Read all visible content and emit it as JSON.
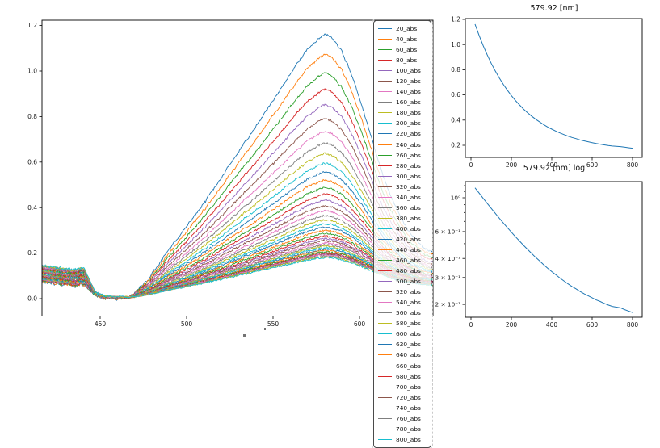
{
  "figure": {
    "background": "#ffffff"
  },
  "palette": [
    "#1f77b4",
    "#ff7f0e",
    "#2ca02c",
    "#d62728",
    "#9467bd",
    "#8c564b",
    "#e377c2",
    "#7f7f7f",
    "#bcbd22",
    "#17becf"
  ],
  "chart_data": [
    {
      "id": "spectra",
      "type": "line",
      "title": "",
      "xlabel": "",
      "ylabel": "",
      "peak_wavelength_nm": 579.92,
      "xlim": [
        416.4,
        642.6
      ],
      "ylim": [
        -0.076,
        1.227
      ],
      "xticks": [
        450,
        500,
        550,
        600
      ],
      "yticks": [
        0.0,
        0.2,
        0.4,
        0.6,
        0.8,
        1.0,
        1.2
      ],
      "grid": false,
      "series": {
        "names": [
          "20_abs",
          "40_abs",
          "60_abs",
          "80_abs",
          "100_abs",
          "120_abs",
          "140_abs",
          "160_abs",
          "180_abs",
          "200_abs",
          "220_abs",
          "240_abs",
          "260_abs",
          "280_abs",
          "300_abs",
          "320_abs",
          "340_abs",
          "360_abs",
          "380_abs",
          "400_abs",
          "420_abs",
          "440_abs",
          "460_abs",
          "480_abs",
          "500_abs",
          "520_abs",
          "540_abs",
          "560_abs",
          "580_abs",
          "600_abs",
          "620_abs",
          "640_abs",
          "660_abs",
          "680_abs",
          "700_abs",
          "720_abs",
          "740_abs",
          "760_abs",
          "780_abs",
          "800_abs"
        ],
        "peak_absorbance_579nm": [
          1.162,
          1.074,
          0.993,
          0.92,
          0.852,
          0.791,
          0.735,
          0.684,
          0.638,
          0.595,
          0.556,
          0.521,
          0.488,
          0.459,
          0.432,
          0.407,
          0.385,
          0.364,
          0.345,
          0.328,
          0.313,
          0.298,
          0.285,
          0.273,
          0.262,
          0.253,
          0.243,
          0.235,
          0.228,
          0.221,
          0.214,
          0.209,
          0.203,
          0.198,
          0.194,
          0.192,
          0.19,
          0.185,
          0.181,
          0.177
        ],
        "color_cycle": "palette"
      },
      "legend": {
        "position": "right-overlap",
        "entries_visible": [
          "20_abs",
          "40_abs",
          "60_abs",
          "80_abs",
          "100_abs",
          "120_abs",
          "140_abs",
          "160_abs",
          "180_abs",
          "200_abs",
          "220_abs",
          "240_abs",
          "260_abs",
          "280_abs",
          "300_abs",
          "320_abs",
          "340_abs",
          "360_abs",
          "380_abs",
          "400_abs",
          "420_abs",
          "440_abs",
          "460_abs",
          "480_abs",
          "500_abs",
          "520_abs",
          "540_abs",
          "560_abs",
          "580_abs",
          "600_abs"
        ]
      },
      "spectrum_model": {
        "baseline": [
          [
            416,
            0.075
          ],
          [
            424,
            0.067
          ],
          [
            430,
            0.061
          ],
          [
            434,
            0.058
          ],
          [
            437,
            0.059
          ],
          [
            439,
            0.063
          ],
          [
            441,
            0.061
          ],
          [
            443,
            0.046
          ],
          [
            445,
            0.029
          ],
          [
            447,
            0.015
          ],
          [
            449,
            0.007
          ],
          [
            452,
            0.002
          ],
          [
            456,
            0.0
          ],
          [
            460,
            0.0
          ],
          [
            466,
            0.001
          ],
          [
            472,
            0.003
          ],
          [
            480,
            0.005
          ],
          [
            490,
            0.008
          ],
          [
            500,
            0.01
          ],
          [
            520,
            0.015
          ],
          [
            540,
            0.02
          ],
          [
            560,
            0.025
          ],
          [
            580,
            0.03
          ],
          [
            600,
            0.032
          ],
          [
            620,
            0.034
          ],
          [
            643,
            0.036
          ]
        ],
        "peak_component": [
          [
            466,
            0
          ],
          [
            470,
            0.02
          ],
          [
            474,
            0.045
          ],
          [
            478,
            0.072
          ],
          [
            480,
            0.09
          ],
          [
            483,
            0.118
          ],
          [
            486,
            0.148
          ],
          [
            490,
            0.185
          ],
          [
            495,
            0.228
          ],
          [
            500,
            0.27
          ],
          [
            505,
            0.315
          ],
          [
            510,
            0.36
          ],
          [
            515,
            0.407
          ],
          [
            520,
            0.455
          ],
          [
            525,
            0.503
          ],
          [
            530,
            0.552
          ],
          [
            535,
            0.6
          ],
          [
            540,
            0.65
          ],
          [
            545,
            0.7
          ],
          [
            550,
            0.75
          ],
          [
            555,
            0.8
          ],
          [
            560,
            0.85
          ],
          [
            565,
            0.9
          ],
          [
            570,
            0.942
          ],
          [
            574,
            0.968
          ],
          [
            577,
            0.988
          ],
          [
            580,
            1.0
          ],
          [
            583,
            0.99
          ],
          [
            586,
            0.968
          ],
          [
            590,
            0.928
          ],
          [
            594,
            0.868
          ],
          [
            598,
            0.792
          ],
          [
            602,
            0.705
          ],
          [
            606,
            0.615
          ],
          [
            610,
            0.525
          ],
          [
            614,
            0.443
          ],
          [
            618,
            0.372
          ],
          [
            622,
            0.31
          ],
          [
            626,
            0.258
          ],
          [
            630,
            0.218
          ],
          [
            634,
            0.188
          ],
          [
            638,
            0.166
          ],
          [
            641,
            0.153
          ],
          [
            643,
            0.148
          ]
        ],
        "baseline_spread_band": [
          [
            416,
            1
          ],
          [
            441,
            1
          ],
          [
            447,
            0.2
          ],
          [
            455,
            0.13
          ],
          [
            462,
            0.11
          ],
          [
            470,
            0.05
          ],
          [
            643,
            0.04
          ]
        ],
        "baseline_spread": 0.07
      }
    },
    {
      "id": "decay",
      "type": "line",
      "title": "579.92 [nm]",
      "line_color": "#1f77b4",
      "x": [
        20,
        40,
        60,
        80,
        100,
        120,
        140,
        160,
        180,
        200,
        220,
        240,
        260,
        280,
        300,
        320,
        340,
        360,
        380,
        400,
        420,
        440,
        460,
        480,
        500,
        520,
        540,
        560,
        580,
        600,
        620,
        640,
        660,
        680,
        700,
        720,
        740,
        760,
        780,
        800
      ],
      "y": [
        1.162,
        1.074,
        0.993,
        0.92,
        0.852,
        0.791,
        0.735,
        0.684,
        0.638,
        0.595,
        0.556,
        0.521,
        0.488,
        0.459,
        0.432,
        0.407,
        0.385,
        0.364,
        0.345,
        0.328,
        0.313,
        0.298,
        0.285,
        0.273,
        0.262,
        0.253,
        0.243,
        0.235,
        0.228,
        0.221,
        0.214,
        0.209,
        0.203,
        0.198,
        0.194,
        0.192,
        0.19,
        0.185,
        0.181,
        0.177
      ],
      "xticks": [
        0,
        200,
        400,
        600,
        800
      ],
      "yticks": [
        0.2,
        0.4,
        0.6,
        0.8,
        1.0,
        1.2
      ],
      "xlim": [
        -28,
        848
      ],
      "ylim": [
        0.104,
        1.206
      ],
      "grid": false
    },
    {
      "id": "decay_log",
      "type": "line",
      "title": "579.92 [nm] log",
      "yscale": "log",
      "line_color": "#1f77b4",
      "x": [
        20,
        40,
        60,
        80,
        100,
        120,
        140,
        160,
        180,
        200,
        220,
        240,
        260,
        280,
        300,
        320,
        340,
        360,
        380,
        400,
        420,
        440,
        460,
        480,
        500,
        520,
        540,
        560,
        580,
        600,
        620,
        640,
        660,
        680,
        700,
        720,
        740,
        760,
        780,
        800
      ],
      "y": [
        1.162,
        1.074,
        0.993,
        0.92,
        0.852,
        0.791,
        0.735,
        0.684,
        0.638,
        0.595,
        0.556,
        0.521,
        0.488,
        0.459,
        0.432,
        0.407,
        0.385,
        0.364,
        0.345,
        0.328,
        0.313,
        0.298,
        0.285,
        0.273,
        0.262,
        0.253,
        0.243,
        0.235,
        0.228,
        0.221,
        0.214,
        0.209,
        0.203,
        0.198,
        0.194,
        0.192,
        0.19,
        0.185,
        0.181,
        0.177
      ],
      "xticks": [
        0,
        200,
        400,
        600,
        800
      ],
      "ytick_values": [
        1,
        0.6,
        0.4,
        0.3,
        0.2
      ],
      "ytick_labels": [
        "10⁰",
        "6 × 10⁻¹",
        "4 × 10⁻¹",
        "3 × 10⁻¹",
        "2 × 10⁻¹"
      ],
      "grid": false
    }
  ]
}
